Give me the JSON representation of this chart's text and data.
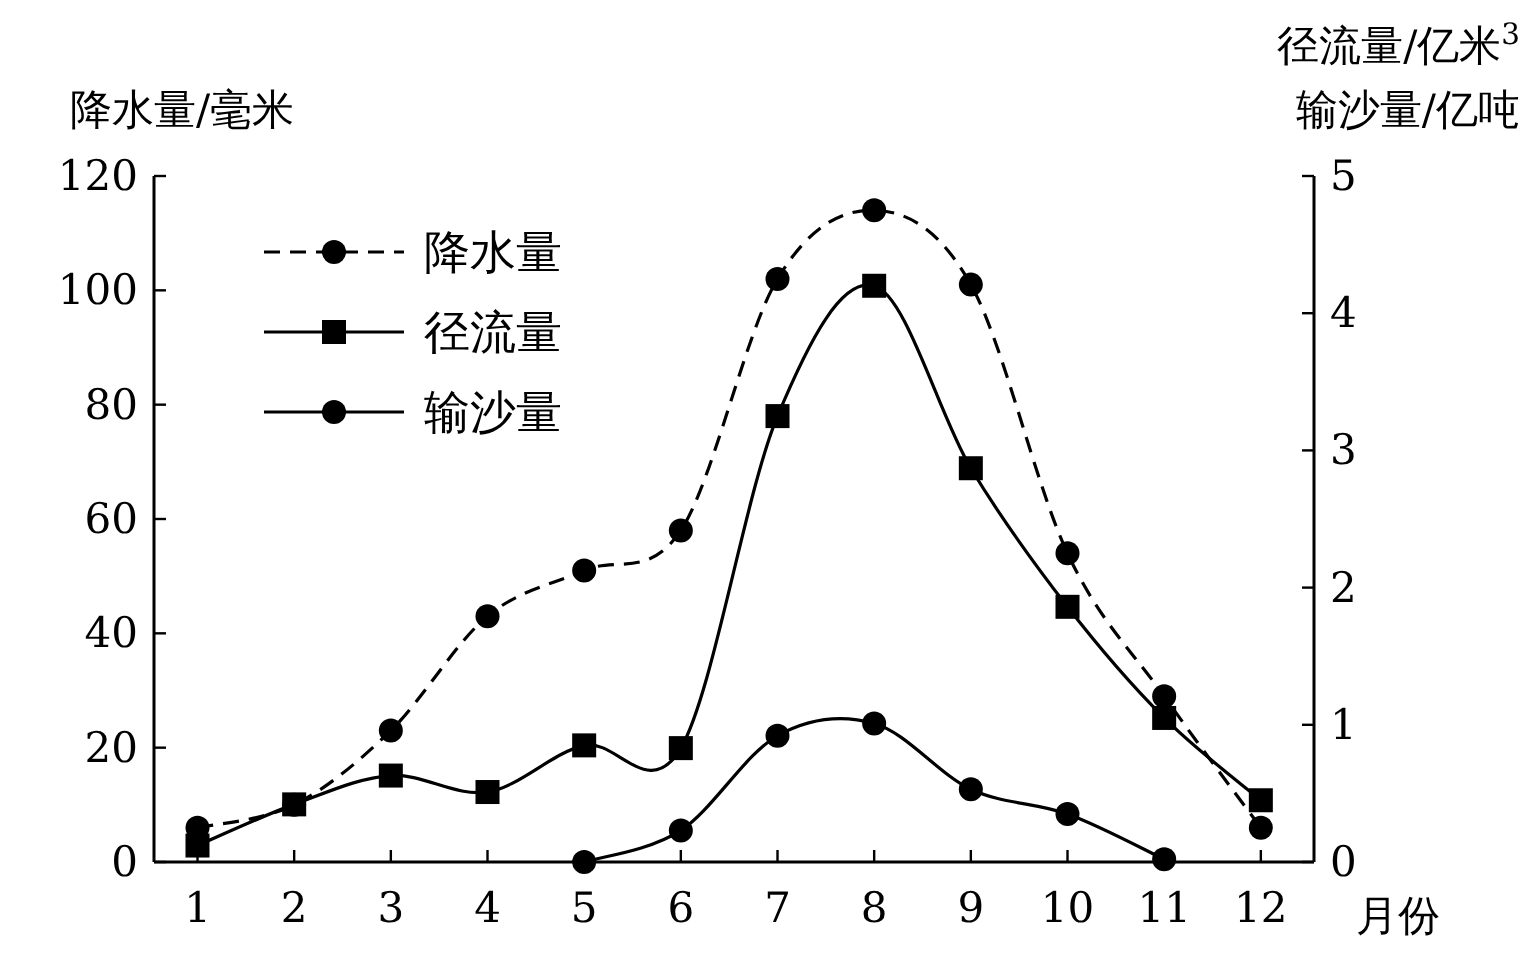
{
  "chart_data": {
    "type": "line",
    "ylabel": "降水量/毫米",
    "y2label": "径流量/亿米$^{3}$\n输沙量/亿吨",
    "xlabel": "月份",
    "x": [
      1,
      2,
      3,
      4,
      5,
      6,
      7,
      8,
      9,
      10,
      11,
      12
    ],
    "xlim": [
      0.55,
      12.55
    ],
    "xticks": [
      1,
      2,
      3,
      4,
      5,
      6,
      7,
      8,
      9,
      10,
      11,
      12
    ],
    "ylim": [
      0,
      120
    ],
    "yticks": [
      0,
      20,
      40,
      60,
      80,
      100,
      120
    ],
    "y2lim": [
      0,
      5
    ],
    "y2ticks": [
      0,
      1,
      2,
      3,
      4,
      5
    ],
    "legend": "top left",
    "grid": false,
    "series": [
      {
        "name": "降水量",
        "color": "#000000",
        "line_style": "dashed",
        "marker": "circle",
        "values": [
          6,
          10,
          23,
          43,
          51,
          58,
          102,
          114,
          101,
          54,
          29,
          6
        ]
      },
      {
        "name": "径流量",
        "color": "#000000",
        "line_style": "solid",
        "marker": "square",
        "axis": "y2",
        "values": [
          0.12,
          0.42,
          0.63,
          0.51,
          0.85,
          0.83,
          3.25,
          4.2,
          2.87,
          1.86,
          1.05,
          0.45
        ]
      },
      {
        "name": "输沙量",
        "color": "#000000",
        "line_style": "solid",
        "marker": "circle",
        "axis": "y2",
        "values": [
          null,
          null,
          null,
          null,
          0,
          0.23,
          0.92,
          1.01,
          0.53,
          0.35,
          0.02,
          null
        ]
      }
    ]
  }
}
